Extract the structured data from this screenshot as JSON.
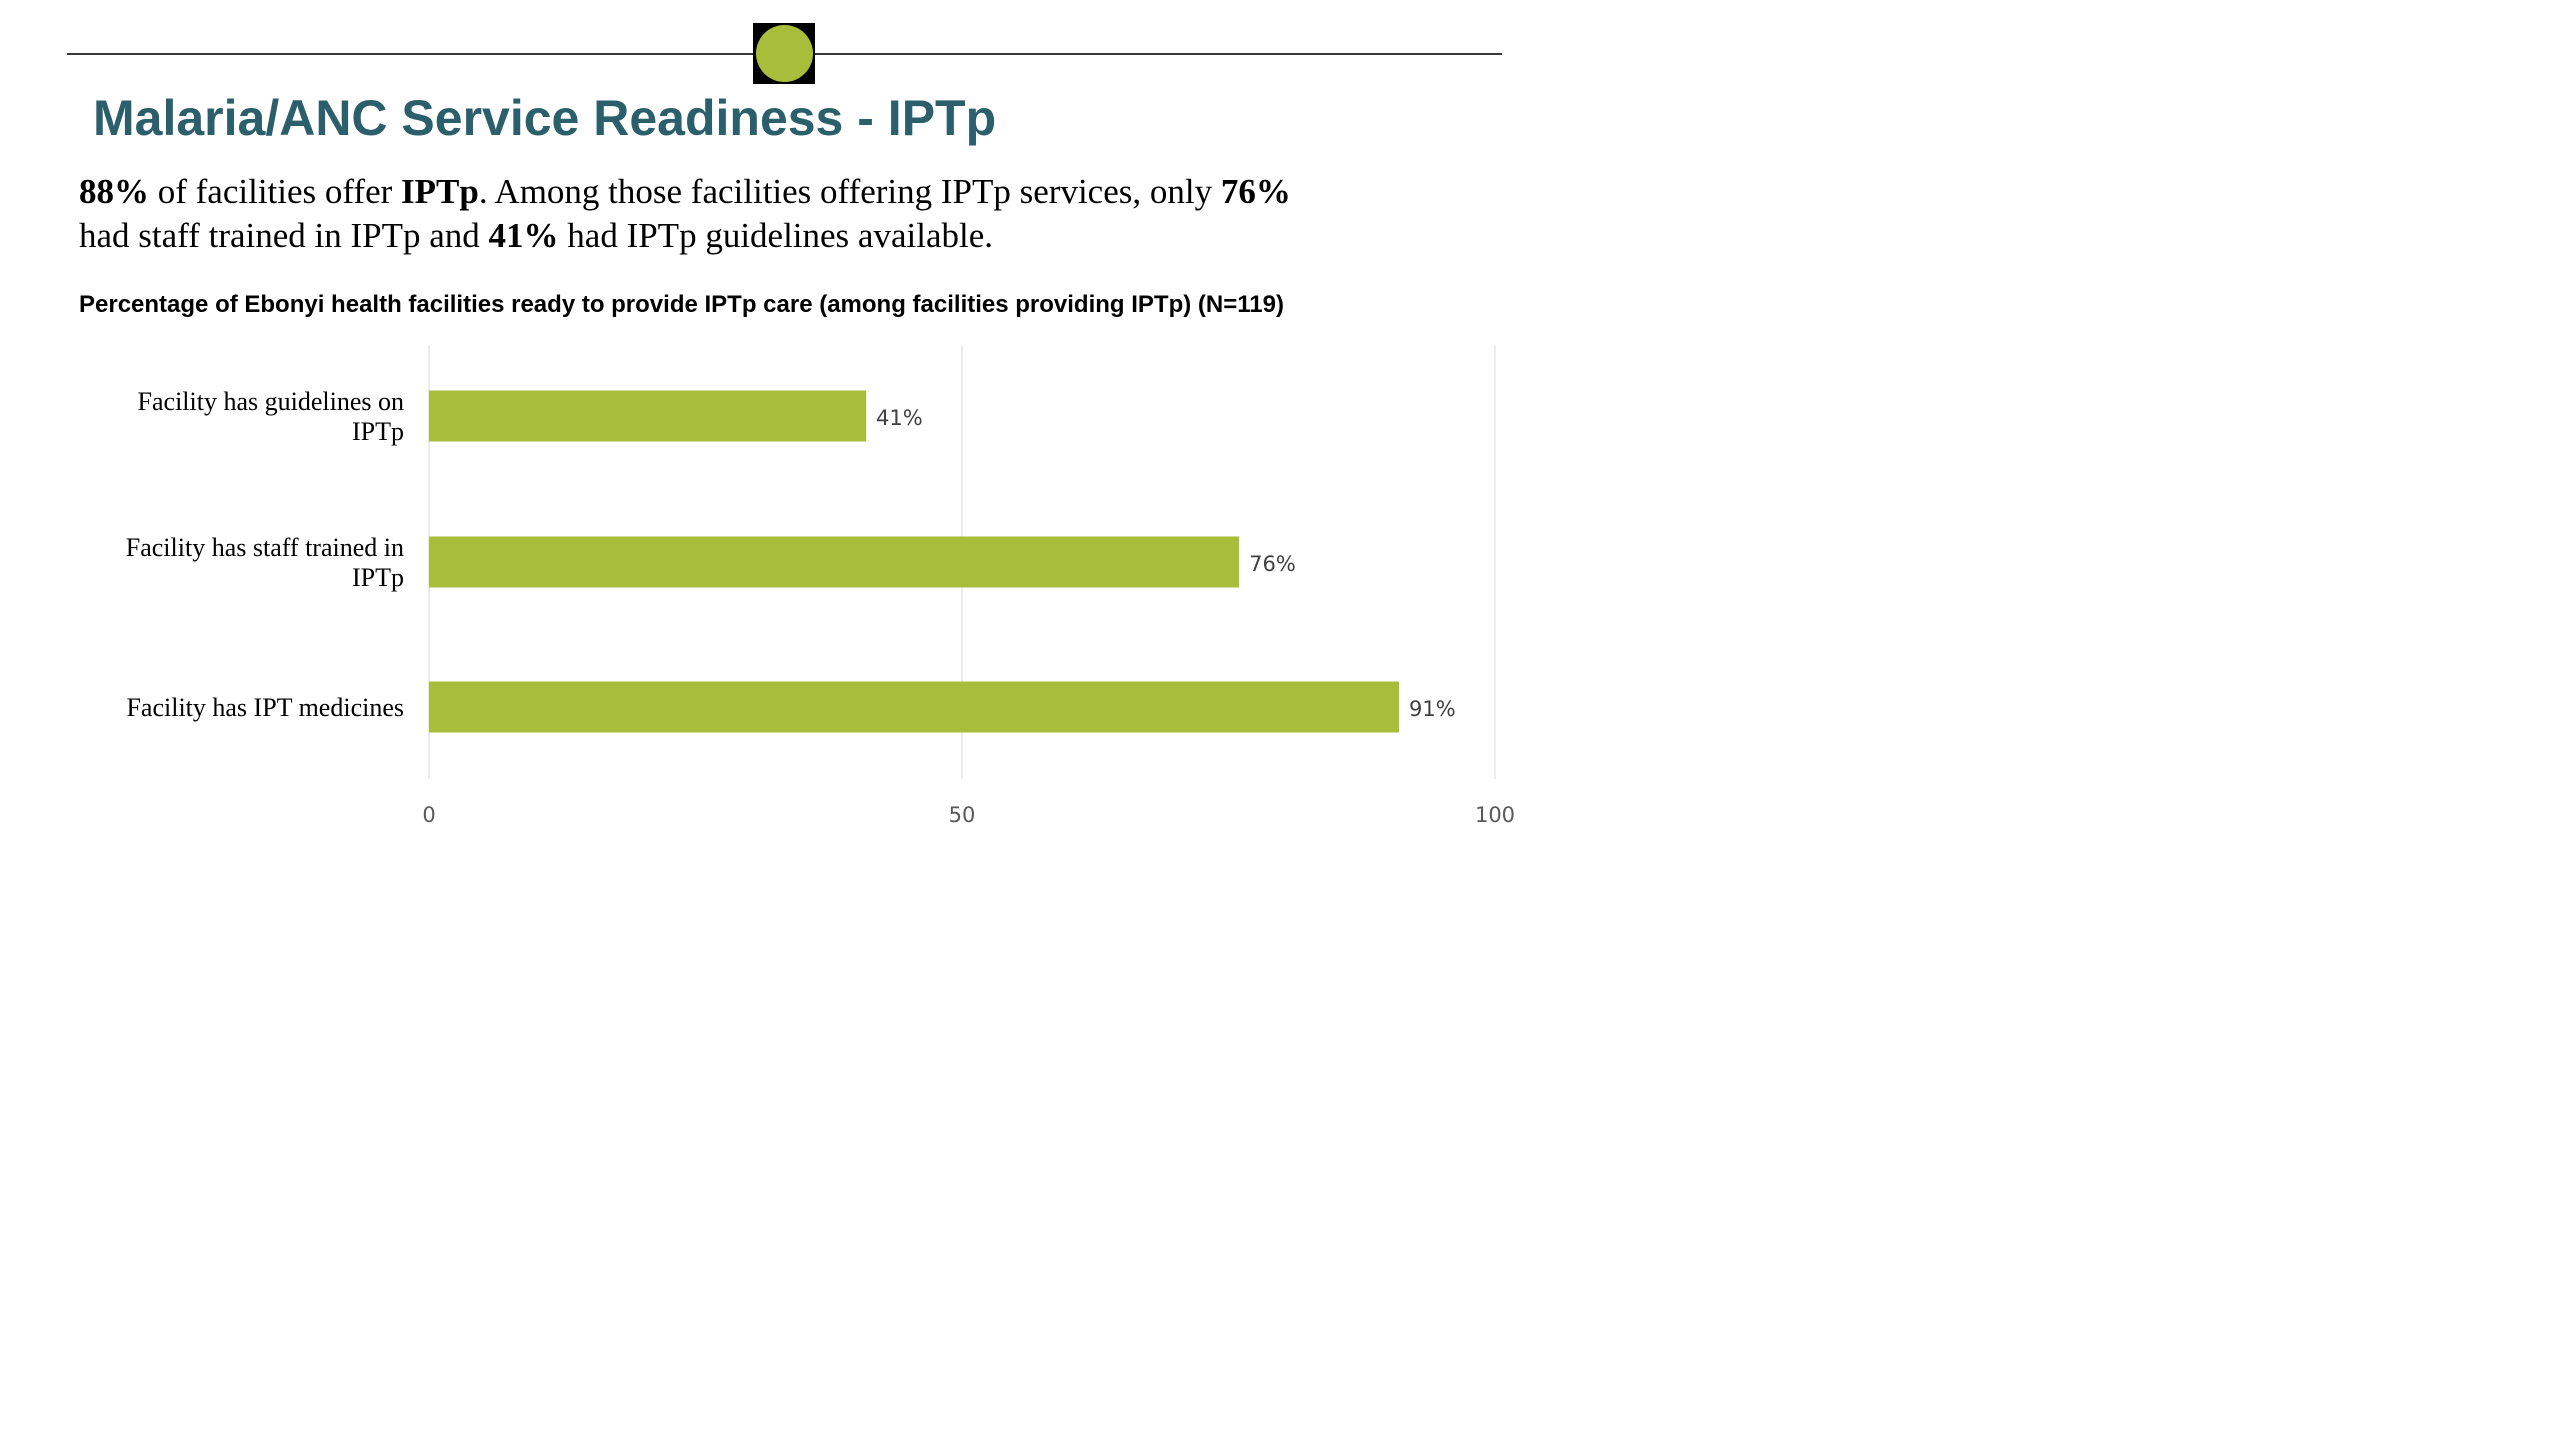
{
  "header": {
    "title": "Malaria/ANC Service Readiness - IPTp",
    "title_color": "#2b5f6b",
    "emblem_color": "#a8bd3a"
  },
  "summary": {
    "part1_bold": "88%",
    "part2": " of facilities offer ",
    "part3_bold": "IPTp",
    "part4": ". Among those facilities offering IPTp services, only ",
    "part5_bold": "76%",
    "part6": " had staff trained in IPTp and ",
    "part7_bold": "41%",
    "part8": " had IPTp guidelines available."
  },
  "chart_data": {
    "type": "bar",
    "orientation": "horizontal",
    "title": "Percentage of Ebonyi health facilities ready to provide IPTp care (among facilities providing IPTp) (N=119)",
    "categories": [
      [
        "Facility has guidelines on",
        "IPTp"
      ],
      [
        "Facility has staff trained in",
        "IPTp"
      ],
      [
        "Facility has IPT medicines"
      ]
    ],
    "values": [
      41,
      76,
      91
    ],
    "value_labels": [
      "41%",
      "76%",
      "91%"
    ],
    "xlim": [
      0,
      100
    ],
    "xticks": [
      0,
      50,
      100
    ],
    "grid": true,
    "bar_color": "#a8bd3a",
    "gridline_color": "#d9d9d9"
  }
}
